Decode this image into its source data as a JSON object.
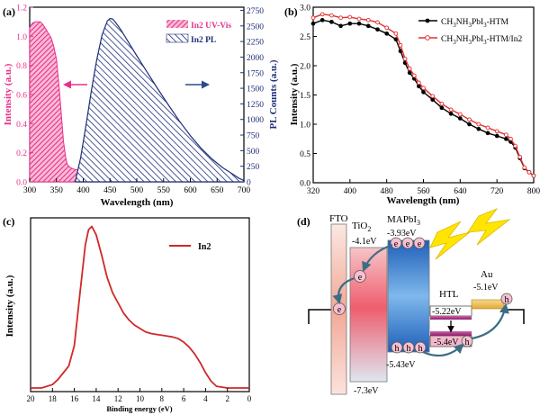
{
  "chart_data": [
    {
      "panel": "(a)",
      "type": "area",
      "xlabel": "Wavelength (nm)",
      "ylabel": "Intensity (a.u.)",
      "y2label": "PL Counts (a.u.)",
      "xlim": [
        300,
        700
      ],
      "ylim": [
        0,
        1.2
      ],
      "y2lim": [
        0,
        2800
      ],
      "xticks": [
        "300",
        "350",
        "400",
        "450",
        "500",
        "550",
        "600",
        "650",
        "700"
      ],
      "yticks": [
        "0.0",
        "0.2",
        "0.4",
        "0.6",
        "0.8",
        "1.0",
        "1.2"
      ],
      "y2ticks": [
        "0",
        "250",
        "500",
        "750",
        "1000",
        "1250",
        "1500",
        "1750",
        "2000",
        "2250",
        "2500",
        "2750"
      ],
      "legend_position": "top-right",
      "series": [
        {
          "name": "In2 UV-Vis",
          "axis": "left",
          "color": "#e8308a",
          "x": [
            300,
            305,
            310,
            315,
            320,
            325,
            330,
            335,
            340,
            345,
            350,
            355,
            360,
            363,
            367,
            370,
            375,
            380,
            385,
            390,
            400,
            420,
            450,
            500,
            550,
            600,
            650,
            700
          ],
          "values": [
            1.06,
            1.09,
            1.1,
            1.1,
            1.1,
            1.08,
            1.05,
            1.02,
            0.99,
            0.93,
            0.84,
            0.65,
            0.42,
            0.28,
            0.17,
            0.12,
            0.1,
            0.09,
            0.085,
            0.082,
            0.078,
            0.072,
            0.064,
            0.05,
            0.035,
            0.022,
            0.011,
            0.0
          ]
        },
        {
          "name": "In2 PL",
          "axis": "right",
          "color": "#1f2f7a",
          "x": [
            385,
            395,
            405,
            415,
            425,
            435,
            445,
            450,
            455,
            460,
            470,
            480,
            500,
            520,
            540,
            560,
            580,
            600,
            620,
            640,
            660,
            680,
            690,
            700
          ],
          "values": [
            0,
            380,
            900,
            1450,
            1950,
            2350,
            2580,
            2620,
            2610,
            2560,
            2440,
            2300,
            2020,
            1750,
            1480,
            1220,
            970,
            740,
            540,
            370,
            230,
            120,
            60,
            20
          ]
        }
      ]
    },
    {
      "panel": "(b)",
      "type": "line",
      "xlabel": "Wavelength (nm)",
      "ylabel": "Intensity (a.u.)",
      "xlim": [
        320,
        800
      ],
      "ylim": [
        0,
        3.0
      ],
      "xticks": [
        "320",
        "400",
        "480",
        "560",
        "640",
        "720",
        "800"
      ],
      "yticks": [
        "0.0",
        "0.5",
        "1.0",
        "1.5",
        "2.0",
        "2.5",
        "3.0"
      ],
      "legend_position": "top-right",
      "x": [
        320,
        340,
        360,
        380,
        400,
        420,
        440,
        460,
        480,
        500,
        510,
        520,
        530,
        540,
        550,
        560,
        580,
        600,
        620,
        640,
        660,
        680,
        700,
        720,
        740,
        750,
        760,
        770,
        780,
        790,
        800
      ],
      "series": [
        {
          "name": "CH3NH3PbI3-HTM",
          "color": "#000000",
          "values": [
            2.72,
            2.78,
            2.75,
            2.68,
            2.72,
            2.72,
            2.68,
            2.62,
            2.55,
            2.45,
            2.25,
            2.05,
            1.88,
            1.78,
            1.65,
            1.55,
            1.42,
            1.28,
            1.18,
            1.1,
            1.0,
            0.92,
            0.85,
            0.8,
            0.75,
            0.7,
            0.6,
            0.42,
            0.25,
            0.18,
            0.12
          ]
        },
        {
          "name": "CH3NH3PbI3-HTM/In2",
          "color": "#e03030",
          "values": [
            2.82,
            2.88,
            2.86,
            2.82,
            2.83,
            2.8,
            2.78,
            2.74,
            2.65,
            2.55,
            2.35,
            2.12,
            1.95,
            1.83,
            1.71,
            1.62,
            1.48,
            1.35,
            1.25,
            1.17,
            1.08,
            1.0,
            0.94,
            0.88,
            0.82,
            0.75,
            0.63,
            0.44,
            0.26,
            0.18,
            0.12
          ]
        }
      ]
    },
    {
      "panel": "(c)",
      "type": "line",
      "xlabel": "Binding energy (eV)",
      "ylabel": "Intensity (a.u.)",
      "xlim": [
        20,
        0
      ],
      "xticks": [
        "20",
        "18",
        "16",
        "14",
        "12",
        "10",
        "8",
        "6",
        "4",
        "2",
        "0"
      ],
      "yticks": [],
      "legend_position": "top-right",
      "series": [
        {
          "name": "In2",
          "color": "#d02828",
          "x": [
            20,
            19,
            18,
            17.5,
            17,
            16.5,
            16,
            15.5,
            15,
            14.7,
            14.4,
            14,
            13.5,
            13,
            12.5,
            12,
            11.5,
            11,
            10.5,
            10,
            9.5,
            9,
            8.5,
            8,
            7.5,
            7,
            6.5,
            6,
            5.5,
            5,
            4.5,
            4,
            3.5,
            3,
            2,
            0
          ],
          "values": [
            0.0,
            0.0,
            0.02,
            0.05,
            0.09,
            0.13,
            0.25,
            0.55,
            0.84,
            0.93,
            0.95,
            0.9,
            0.78,
            0.65,
            0.56,
            0.5,
            0.44,
            0.4,
            0.37,
            0.35,
            0.33,
            0.32,
            0.315,
            0.31,
            0.305,
            0.3,
            0.29,
            0.27,
            0.24,
            0.2,
            0.15,
            0.09,
            0.04,
            0.01,
            0.0,
            0.0
          ]
        }
      ]
    },
    {
      "panel": "(d)",
      "type": "diagram",
      "labels": {
        "fto": "FTO",
        "tio2": "TiO",
        "tio2_sub": "2",
        "mapbi": "MAPbI",
        "mapbi_sub": "3",
        "htl": "HTL",
        "au": "Au",
        "tio2_top": "-4.1eV",
        "mapbi_top": "-3.93eV",
        "au_level": "-5.1eV",
        "htl_level1": "-5.22eV",
        "htl_level2": "-5.4eV",
        "mapbi_bottom": "-5.43eV",
        "tio2_bottom": "-7.3eV",
        "electron": "e",
        "hole": "h"
      },
      "colors": {
        "fto": "#f2b8a8",
        "tio2": "#f07080",
        "mapbi": "#3f8fd8",
        "htl": "#b22a8a",
        "au": "#f2c46a",
        "lightning": "#ffe500"
      }
    }
  ]
}
